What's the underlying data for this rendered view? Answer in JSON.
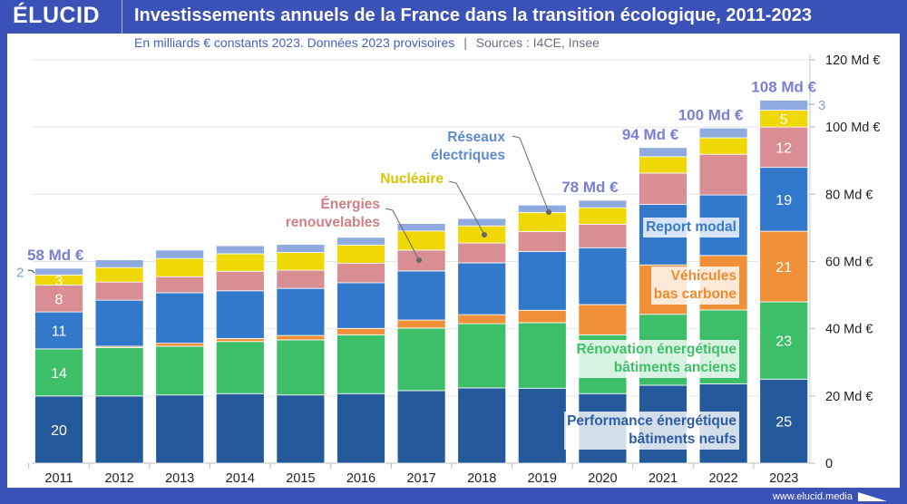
{
  "header": {
    "logo": "ÉLUCID",
    "title": "Investissements annuels de la France dans la transition écologique, 2011-2023"
  },
  "subtitle": {
    "main": "En milliards € constants 2023. Données 2023 provisoires",
    "separator": "|",
    "sources": "Sources : I4CE, Insee"
  },
  "footer": {
    "url": "www.elucid.media"
  },
  "chart_data": {
    "type": "bar",
    "stacked": true,
    "title": "Investissements annuels de la France dans la transition écologique, 2011-2023",
    "categories": [
      "2011",
      "2012",
      "2013",
      "2014",
      "2015",
      "2016",
      "2017",
      "2018",
      "2019",
      "2020",
      "2021",
      "2022",
      "2023"
    ],
    "ylim": [
      0,
      120
    ],
    "yticks": [
      0,
      20,
      40,
      60,
      80,
      100,
      120
    ],
    "ytick_labels": [
      "0",
      "20 Md €",
      "40 Md €",
      "60 Md €",
      "80 Md €",
      "100 Md €",
      "120 Md €"
    ],
    "grid": true,
    "series": [
      {
        "name": "Performance énergétique bâtiments neufs",
        "color": "#245a9b",
        "values": [
          20,
          20.0,
          20.3,
          20.7,
          20.3,
          20.7,
          21.6,
          22.4,
          22.3,
          20.7,
          23.2,
          23.6,
          25
        ]
      },
      {
        "name": "Rénovation énergétique bâtiments anciens",
        "color": "#3dbf69",
        "values": [
          14,
          14.4,
          14.5,
          15.5,
          16.4,
          17.5,
          18.6,
          19.1,
          19.5,
          17.5,
          21.1,
          22.0,
          23
        ]
      },
      {
        "name": "Véhicules bas carbone",
        "color": "#f0913a",
        "values": [
          0,
          0.4,
          0.9,
          0.9,
          1.3,
          1.9,
          2.4,
          2.7,
          3.7,
          9.0,
          14.7,
          16.2,
          21
        ]
      },
      {
        "name": "Report modal",
        "color": "#3279cc",
        "values": [
          11,
          13.7,
          15.0,
          14.2,
          14.0,
          13.6,
          14.6,
          15.4,
          17.5,
          16.9,
          18.0,
          18.0,
          19
        ]
      },
      {
        "name": "Énergies renouvelables",
        "color": "#d88e93",
        "values": [
          8,
          5.4,
          4.8,
          5.8,
          5.4,
          5.8,
          6.2,
          5.9,
          5.9,
          7.0,
          9.3,
          12.1,
          12
        ]
      },
      {
        "name": "Nucléaire",
        "color": "#efd805",
        "values": [
          3,
          4.3,
          5.4,
          5.2,
          5.3,
          5.4,
          5.7,
          5.1,
          5.7,
          4.9,
          4.9,
          4.9,
          5
        ]
      },
      {
        "name": "Réseaux électriques",
        "color": "#8eaadf",
        "values": [
          2,
          2.3,
          2.5,
          2.4,
          2.4,
          2.3,
          2.2,
          2.2,
          2.2,
          2.2,
          2.7,
          2.9,
          3
        ]
      }
    ],
    "value_labels": {
      "2011": [
        "20",
        "14",
        "",
        "11",
        "8",
        "3",
        "2"
      ],
      "2023": [
        "25",
        "23",
        "21",
        "19",
        "12",
        "5",
        "3"
      ]
    },
    "total_labels": {
      "2011": "58 Md €",
      "2020": "78 Md €",
      "2021": "94 Md €",
      "2022": "100 Md €",
      "2023": "108 Md €"
    },
    "total_label_color": "#7b7fd6"
  }
}
